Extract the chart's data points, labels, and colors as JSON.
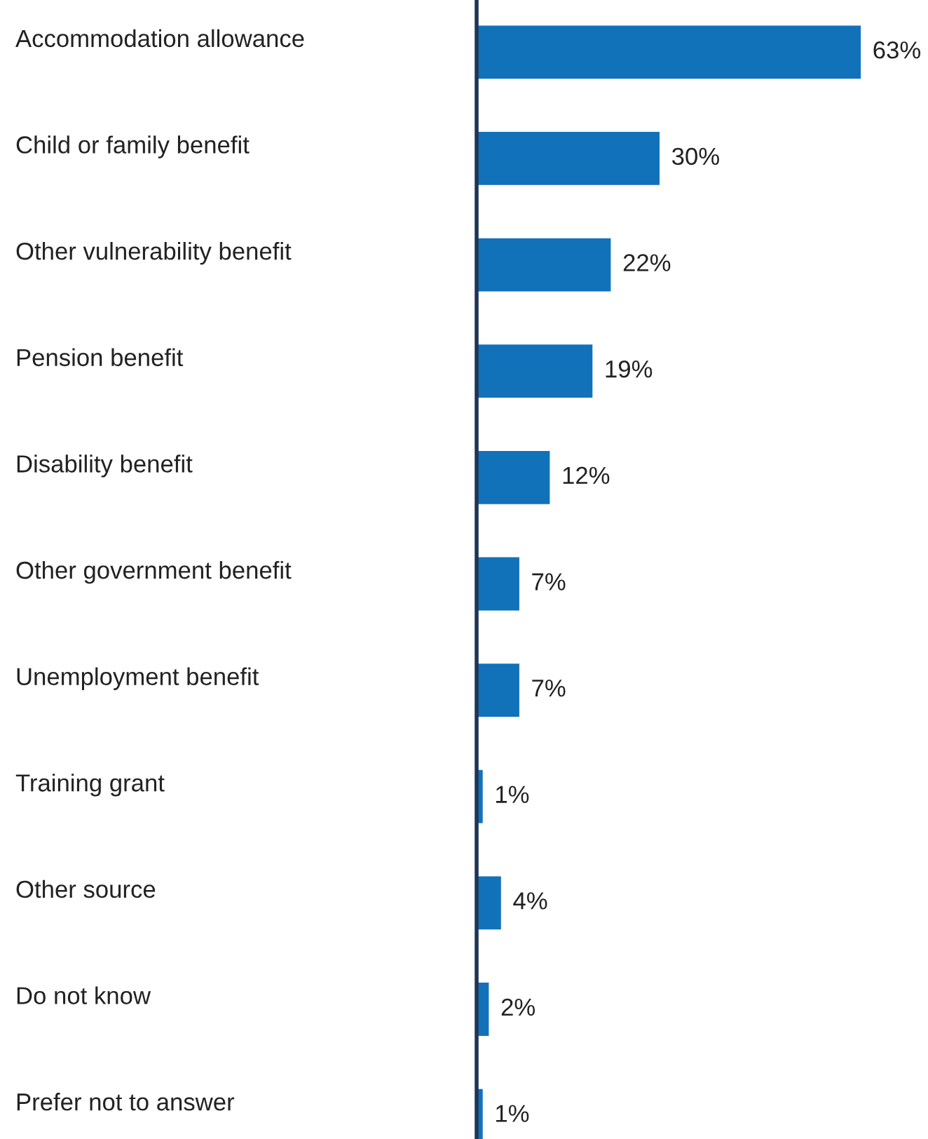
{
  "chart_data": {
    "type": "bar",
    "orientation": "horizontal",
    "categories": [
      "Accommodation allowance",
      "Child or family benefit",
      "Other vulnerability benefit",
      "Pension benefit",
      "Disability benefit",
      "Other government benefit",
      "Unemployment benefit",
      "Training grant",
      "Other source",
      "Do not know",
      "Prefer not to answer"
    ],
    "values": [
      63,
      30,
      22,
      19,
      12,
      7,
      7,
      1,
      4,
      2,
      1
    ],
    "value_labels": [
      "63%",
      "30%",
      "22%",
      "19%",
      "12%",
      "7%",
      "7%",
      "1%",
      "4%",
      "2%",
      "1%"
    ],
    "color": "#1172ba",
    "grid": false,
    "legend": false
  }
}
